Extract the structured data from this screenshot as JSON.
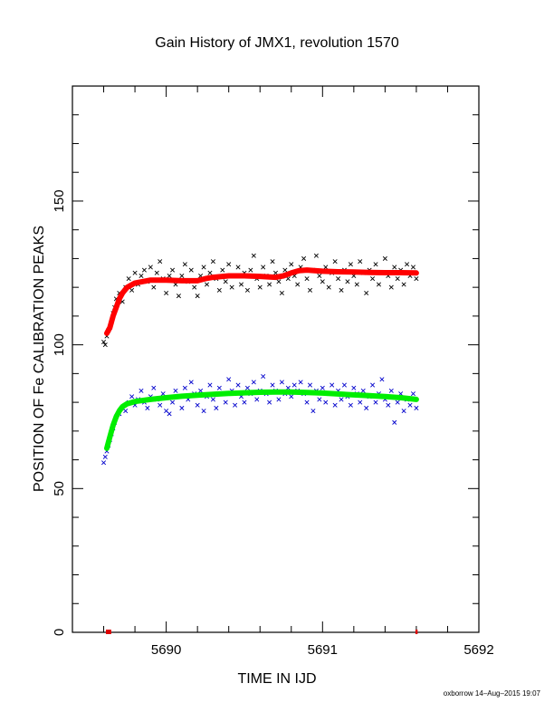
{
  "chart_data": {
    "type": "scatter",
    "title": "Gain History of JMX1, revolution 1570",
    "xlabel": "TIME IN IJD",
    "ylabel": "POSITION OF Fe CALIBRATION PEAKS",
    "xlim": [
      5689.4,
      5692.0
    ],
    "ylim": [
      0,
      190
    ],
    "x_ticks": [
      "5690",
      "5691",
      "5692"
    ],
    "y_ticks": [
      "0",
      "50",
      "100",
      "150"
    ],
    "grid": false,
    "footer": "oxborrow 14–Aug–2015 19:07",
    "x_axis_markers": [
      5689.62,
      5689.63,
      5689.64,
      5691.6
    ],
    "series": [
      {
        "color": "#000000",
        "marker": "x",
        "points": [
          [
            5689.6,
            101
          ],
          [
            5689.61,
            100
          ],
          [
            5689.62,
            103
          ],
          [
            5689.63,
            105
          ],
          [
            5689.64,
            106
          ],
          [
            5689.65,
            108
          ],
          [
            5689.66,
            111
          ],
          [
            5689.67,
            113
          ],
          [
            5689.68,
            116
          ],
          [
            5689.7,
            118
          ],
          [
            5689.72,
            115
          ],
          [
            5689.74,
            120
          ],
          [
            5689.76,
            123
          ],
          [
            5689.78,
            119
          ],
          [
            5689.8,
            125
          ],
          [
            5689.82,
            121
          ],
          [
            5689.84,
            124
          ],
          [
            5689.86,
            126
          ],
          [
            5689.88,
            122
          ],
          [
            5689.9,
            127
          ],
          [
            5689.92,
            120
          ],
          [
            5689.94,
            125
          ],
          [
            5689.96,
            129
          ],
          [
            5689.98,
            123
          ],
          [
            5690.0,
            118
          ],
          [
            5690.02,
            124
          ],
          [
            5690.04,
            126
          ],
          [
            5690.06,
            121
          ],
          [
            5690.08,
            117
          ],
          [
            5690.1,
            124
          ],
          [
            5690.12,
            128
          ],
          [
            5690.14,
            122
          ],
          [
            5690.16,
            126
          ],
          [
            5690.18,
            120
          ],
          [
            5690.2,
            117
          ],
          [
            5690.22,
            124
          ],
          [
            5690.24,
            127
          ],
          [
            5690.26,
            121
          ],
          [
            5690.28,
            125
          ],
          [
            5690.3,
            129
          ],
          [
            5690.32,
            123
          ],
          [
            5690.34,
            119
          ],
          [
            5690.36,
            126
          ],
          [
            5690.38,
            122
          ],
          [
            5690.4,
            128
          ],
          [
            5690.42,
            120
          ],
          [
            5690.44,
            124
          ],
          [
            5690.46,
            127
          ],
          [
            5690.48,
            121
          ],
          [
            5690.5,
            125
          ],
          [
            5690.52,
            119
          ],
          [
            5690.54,
            126
          ],
          [
            5690.56,
            131
          ],
          [
            5690.58,
            123
          ],
          [
            5690.6,
            120
          ],
          [
            5690.62,
            127
          ],
          [
            5690.64,
            124
          ],
          [
            5690.66,
            121
          ],
          [
            5690.68,
            129
          ],
          [
            5690.7,
            125
          ],
          [
            5690.72,
            122
          ],
          [
            5690.74,
            118
          ],
          [
            5690.76,
            126
          ],
          [
            5690.78,
            123
          ],
          [
            5690.8,
            128
          ],
          [
            5690.82,
            124
          ],
          [
            5690.84,
            121
          ],
          [
            5690.86,
            127
          ],
          [
            5690.88,
            130
          ],
          [
            5690.9,
            123
          ],
          [
            5690.92,
            119
          ],
          [
            5690.94,
            126
          ],
          [
            5690.96,
            131
          ],
          [
            5690.98,
            124
          ],
          [
            5691.0,
            122
          ],
          [
            5691.02,
            127
          ],
          [
            5691.04,
            120
          ],
          [
            5691.06,
            125
          ],
          [
            5691.08,
            129
          ],
          [
            5691.1,
            123
          ],
          [
            5691.12,
            119
          ],
          [
            5691.14,
            126
          ],
          [
            5691.16,
            122
          ],
          [
            5691.18,
            128
          ],
          [
            5691.2,
            124
          ],
          [
            5691.22,
            121
          ],
          [
            5691.24,
            129
          ],
          [
            5691.26,
            125
          ],
          [
            5691.28,
            118
          ],
          [
            5691.3,
            126
          ],
          [
            5691.32,
            123
          ],
          [
            5691.34,
            128
          ],
          [
            5691.36,
            121
          ],
          [
            5691.38,
            125
          ],
          [
            5691.4,
            130
          ],
          [
            5691.42,
            124
          ],
          [
            5691.44,
            120
          ],
          [
            5691.46,
            127
          ],
          [
            5691.48,
            123
          ],
          [
            5691.5,
            126
          ],
          [
            5691.52,
            121
          ],
          [
            5691.54,
            128
          ],
          [
            5691.56,
            124
          ],
          [
            5691.58,
            127
          ],
          [
            5691.6,
            123
          ]
        ]
      },
      {
        "color": "#0000cc",
        "marker": "x",
        "points": [
          [
            5689.6,
            59
          ],
          [
            5689.61,
            61
          ],
          [
            5689.62,
            63
          ],
          [
            5689.63,
            65
          ],
          [
            5689.64,
            67
          ],
          [
            5689.65,
            69
          ],
          [
            5689.66,
            71
          ],
          [
            5689.67,
            73
          ],
          [
            5689.68,
            75
          ],
          [
            5689.7,
            76
          ],
          [
            5689.72,
            78
          ],
          [
            5689.74,
            77
          ],
          [
            5689.76,
            80
          ],
          [
            5689.78,
            82
          ],
          [
            5689.8,
            79
          ],
          [
            5689.82,
            81
          ],
          [
            5689.84,
            84
          ],
          [
            5689.86,
            80
          ],
          [
            5689.88,
            78
          ],
          [
            5689.9,
            82
          ],
          [
            5689.92,
            85
          ],
          [
            5689.94,
            81
          ],
          [
            5689.96,
            79
          ],
          [
            5689.98,
            83
          ],
          [
            5690.0,
            77
          ],
          [
            5690.02,
            76
          ],
          [
            5690.04,
            80
          ],
          [
            5690.06,
            84
          ],
          [
            5690.08,
            82
          ],
          [
            5690.1,
            78
          ],
          [
            5690.12,
            85
          ],
          [
            5690.14,
            81
          ],
          [
            5690.16,
            87
          ],
          [
            5690.18,
            83
          ],
          [
            5690.2,
            79
          ],
          [
            5690.22,
            84
          ],
          [
            5690.24,
            77
          ],
          [
            5690.26,
            82
          ],
          [
            5690.28,
            86
          ],
          [
            5690.3,
            81
          ],
          [
            5690.32,
            78
          ],
          [
            5690.34,
            85
          ],
          [
            5690.36,
            83
          ],
          [
            5690.38,
            80
          ],
          [
            5690.4,
            88
          ],
          [
            5690.42,
            84
          ],
          [
            5690.44,
            79
          ],
          [
            5690.46,
            86
          ],
          [
            5690.48,
            82
          ],
          [
            5690.5,
            80
          ],
          [
            5690.52,
            85
          ],
          [
            5690.54,
            83
          ],
          [
            5690.56,
            87
          ],
          [
            5690.58,
            81
          ],
          [
            5690.6,
            84
          ],
          [
            5690.62,
            89
          ],
          [
            5690.64,
            83
          ],
          [
            5690.66,
            80
          ],
          [
            5690.68,
            86
          ],
          [
            5690.7,
            84
          ],
          [
            5690.72,
            81
          ],
          [
            5690.74,
            87
          ],
          [
            5690.76,
            83
          ],
          [
            5690.78,
            85
          ],
          [
            5690.8,
            82
          ],
          [
            5690.82,
            86
          ],
          [
            5690.84,
            84
          ],
          [
            5690.86,
            87
          ],
          [
            5690.88,
            83
          ],
          [
            5690.9,
            80
          ],
          [
            5690.92,
            86
          ],
          [
            5690.94,
            77
          ],
          [
            5690.96,
            84
          ],
          [
            5690.98,
            81
          ],
          [
            5691.0,
            85
          ],
          [
            5691.02,
            80
          ],
          [
            5691.04,
            83
          ],
          [
            5691.06,
            86
          ],
          [
            5691.08,
            79
          ],
          [
            5691.1,
            84
          ],
          [
            5691.12,
            81
          ],
          [
            5691.14,
            86
          ],
          [
            5691.16,
            82
          ],
          [
            5691.18,
            79
          ],
          [
            5691.2,
            85
          ],
          [
            5691.22,
            83
          ],
          [
            5691.24,
            80
          ],
          [
            5691.26,
            84
          ],
          [
            5691.28,
            78
          ],
          [
            5691.3,
            82
          ],
          [
            5691.32,
            86
          ],
          [
            5691.34,
            80
          ],
          [
            5691.36,
            83
          ],
          [
            5691.38,
            88
          ],
          [
            5691.4,
            81
          ],
          [
            5691.42,
            79
          ],
          [
            5691.44,
            84
          ],
          [
            5691.46,
            73
          ],
          [
            5691.48,
            80
          ],
          [
            5691.5,
            83
          ],
          [
            5691.52,
            77
          ],
          [
            5691.54,
            81
          ],
          [
            5691.56,
            79
          ],
          [
            5691.58,
            83
          ],
          [
            5691.6,
            78
          ]
        ]
      },
      {
        "color": "#ff0000",
        "marker": "thick-line",
        "points": [
          [
            5689.62,
            104
          ],
          [
            5689.64,
            106
          ],
          [
            5689.66,
            110
          ],
          [
            5689.68,
            113
          ],
          [
            5689.7,
            116
          ],
          [
            5689.72,
            118
          ],
          [
            5689.75,
            120
          ],
          [
            5689.8,
            121.5
          ],
          [
            5689.85,
            122
          ],
          [
            5689.9,
            122.5
          ],
          [
            5690.0,
            122.5
          ],
          [
            5690.1,
            122.3
          ],
          [
            5690.2,
            122.3
          ],
          [
            5690.25,
            123
          ],
          [
            5690.3,
            123.5
          ],
          [
            5690.4,
            124
          ],
          [
            5690.5,
            124
          ],
          [
            5690.6,
            123.8
          ],
          [
            5690.7,
            123.5
          ],
          [
            5690.75,
            124
          ],
          [
            5690.8,
            125
          ],
          [
            5690.85,
            125.8
          ],
          [
            5690.9,
            126
          ],
          [
            5691.0,
            125.6
          ],
          [
            5691.1,
            125.4
          ],
          [
            5691.2,
            125.3
          ],
          [
            5691.3,
            125.2
          ],
          [
            5691.4,
            125.1
          ],
          [
            5691.5,
            125.1
          ],
          [
            5691.6,
            125
          ]
        ]
      },
      {
        "color": "#00ee00",
        "marker": "thick-line",
        "points": [
          [
            5689.62,
            64
          ],
          [
            5689.64,
            68
          ],
          [
            5689.66,
            72
          ],
          [
            5689.68,
            75
          ],
          [
            5689.7,
            77
          ],
          [
            5689.72,
            78.5
          ],
          [
            5689.75,
            79.5
          ],
          [
            5689.8,
            80.3
          ],
          [
            5689.9,
            81
          ],
          [
            5690.0,
            81.6
          ],
          [
            5690.1,
            82.1
          ],
          [
            5690.2,
            82.5
          ],
          [
            5690.3,
            82.8
          ],
          [
            5690.4,
            83.1
          ],
          [
            5690.5,
            83.3
          ],
          [
            5690.6,
            83.5
          ],
          [
            5690.7,
            83.6
          ],
          [
            5690.8,
            83.6
          ],
          [
            5690.9,
            83.4
          ],
          [
            5691.0,
            83.2
          ],
          [
            5691.1,
            82.9
          ],
          [
            5691.2,
            82.6
          ],
          [
            5691.3,
            82.3
          ],
          [
            5691.4,
            82
          ],
          [
            5691.5,
            81.6
          ],
          [
            5691.6,
            81
          ]
        ]
      }
    ]
  }
}
